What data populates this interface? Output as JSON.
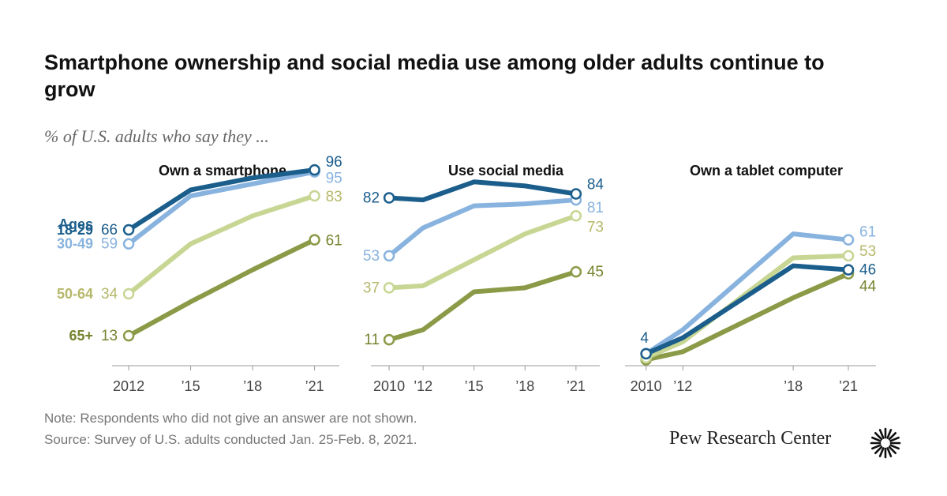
{
  "title": "Smartphone ownership and social media use among older adults continue to grow",
  "subtitle": "% of U.S. adults who say they ...",
  "note": "Note: Respondents who did not give an answer are not shown.",
  "source": "Source: Survey of U.S. adults conducted Jan. 25-Feb. 8, 2021.",
  "brand": "Pew Research Center",
  "legend_title": "Ages",
  "colors": {
    "18-29": "#1b5e8c",
    "30-49": "#88b3df",
    "50-64": "#c7d693",
    "65+": "#8a9a47",
    "label_50-64": "#b6b86a",
    "label_65+": "#74842f"
  },
  "chart_data": [
    {
      "type": "line",
      "title": "Own a smartphone",
      "x": [
        2012,
        2015,
        2018,
        2021
      ],
      "tick_labels": [
        "2012",
        "’15",
        "’18",
        "’21"
      ],
      "ylim": [
        0,
        100
      ],
      "series": [
        {
          "name": "18-29",
          "values": [
            66,
            86,
            92,
            96
          ]
        },
        {
          "name": "30-49",
          "values": [
            59,
            83,
            89,
            95
          ]
        },
        {
          "name": "50-64",
          "values": [
            34,
            59,
            73,
            83
          ]
        },
        {
          "name": "65+",
          "values": [
            13,
            30,
            46,
            61
          ]
        }
      ],
      "labels": [
        {
          "series": "18-29",
          "start": "66",
          "end": "96"
        },
        {
          "series": "30-49",
          "start": "59",
          "end": "95"
        },
        {
          "series": "50-64",
          "start": "34",
          "end": "83"
        },
        {
          "series": "65+",
          "start": "13",
          "end": "61"
        }
      ]
    },
    {
      "type": "line",
      "title": "Use social media",
      "x": [
        2010,
        2012,
        2015,
        2018,
        2021
      ],
      "tick_labels": [
        "2010",
        "’12",
        "’15",
        "’18",
        "’21"
      ],
      "ylim": [
        0,
        100
      ],
      "series": [
        {
          "name": "18-29",
          "values": [
            82,
            81,
            90,
            88,
            84
          ]
        },
        {
          "name": "30-49",
          "values": [
            53,
            67,
            78,
            79,
            81
          ]
        },
        {
          "name": "50-64",
          "values": [
            37,
            38,
            51,
            64,
            73
          ]
        },
        {
          "name": "65+",
          "values": [
            11,
            16,
            35,
            37,
            45
          ]
        }
      ],
      "labels": [
        {
          "series": "18-29",
          "start": "82",
          "end": "84"
        },
        {
          "series": "30-49",
          "start": "53",
          "end": "81"
        },
        {
          "series": "50-64",
          "start": "37",
          "end": "73"
        },
        {
          "series": "65+",
          "start": "11",
          "end": "45"
        }
      ]
    },
    {
      "type": "line",
      "title": "Own a tablet computer",
      "x": [
        2010,
        2012,
        2018,
        2021
      ],
      "tick_labels": [
        "2010",
        "’12",
        "’18",
        "’21"
      ],
      "ylim": [
        0,
        100
      ],
      "series": [
        {
          "name": "30-49",
          "values": [
            4,
            16,
            64,
            61
          ]
        },
        {
          "name": "50-64",
          "values": [
            2,
            10,
            52,
            53
          ]
        },
        {
          "name": "18-29",
          "values": [
            4,
            12,
            48,
            46
          ]
        },
        {
          "name": "65+",
          "values": [
            1,
            5,
            32,
            44
          ]
        }
      ],
      "labels": [
        {
          "series": "18-29",
          "start": "4",
          "end": "46"
        },
        {
          "series": "30-49",
          "start": "",
          "end": "61"
        },
        {
          "series": "50-64",
          "start": "",
          "end": "53"
        },
        {
          "series": "65+",
          "start": "",
          "end": "44"
        }
      ]
    }
  ]
}
